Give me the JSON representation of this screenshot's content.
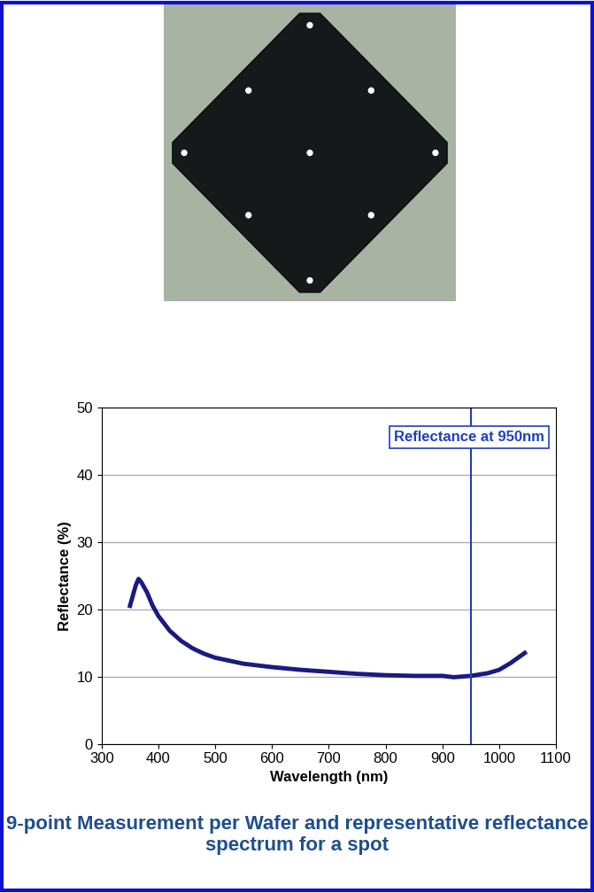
{
  "chart_data": {
    "type": "line",
    "x_label": "Wavelength (nm)",
    "y_label": "Reflectance (%)",
    "x": [
      350,
      355,
      360,
      365,
      370,
      380,
      390,
      400,
      420,
      440,
      460,
      480,
      500,
      550,
      600,
      650,
      700,
      750,
      800,
      850,
      900,
      920,
      950,
      980,
      1000,
      1020,
      1040,
      1045
    ],
    "series": [
      {
        "name": "Reflectance",
        "color": "#1a1a80",
        "line_style": "solid",
        "values": [
          20.5,
          22.0,
          23.5,
          24.5,
          24.0,
          22.5,
          20.5,
          19.0,
          16.8,
          15.3,
          14.2,
          13.4,
          12.8,
          11.9,
          11.4,
          11.0,
          10.7,
          10.4,
          10.2,
          10.1,
          10.1,
          9.9,
          10.1,
          10.5,
          11.0,
          12.0,
          13.2,
          13.5
        ]
      }
    ],
    "xlim": [
      300,
      1100
    ],
    "xticks": [
      300,
      400,
      500,
      600,
      700,
      800,
      900,
      1000,
      1100
    ],
    "ylim": [
      0,
      50
    ],
    "yticks": [
      0,
      10,
      20,
      30,
      40,
      50
    ],
    "grid": true,
    "reference_line": {
      "x": 950,
      "label": "Reflectance at 950nm",
      "color": "#1f3fbf"
    },
    "caption": "9-point Measurement per Wafer and representative reflectance spectrum for a spot"
  }
}
